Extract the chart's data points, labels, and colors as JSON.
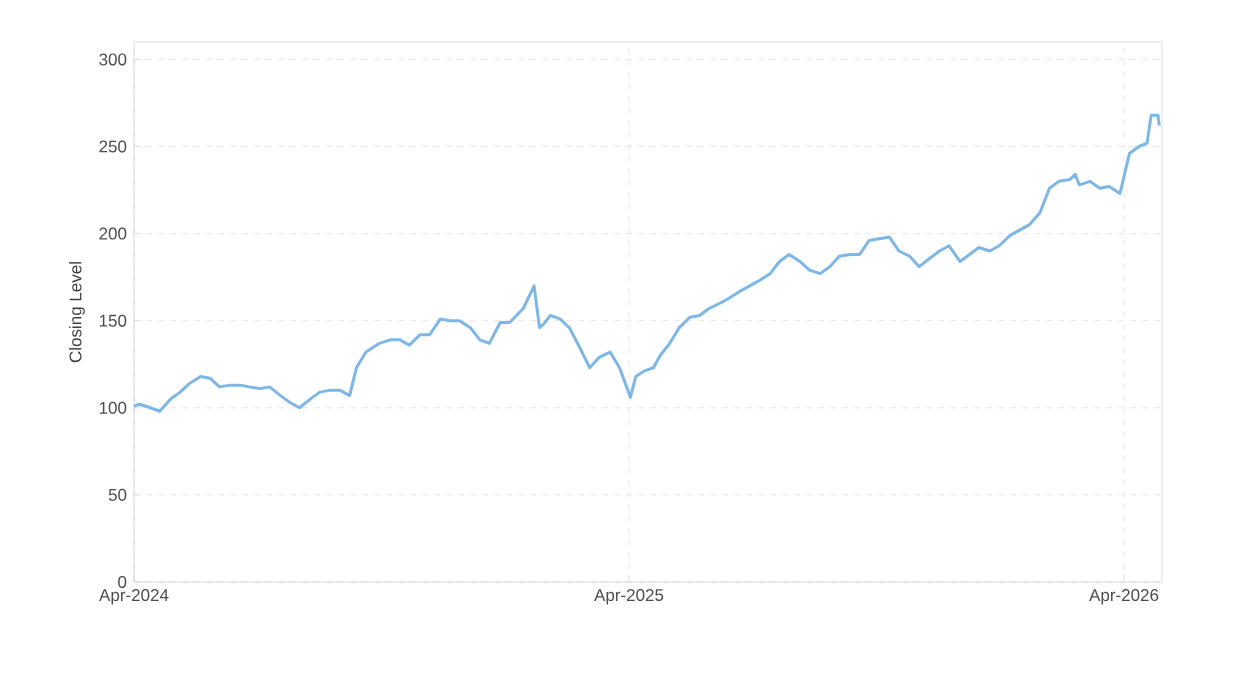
{
  "chart_data": {
    "type": "line",
    "ylabel": "Closing Level",
    "color": "#7eb6e6",
    "xlim": [
      "2024-04-01",
      "2026-04-29"
    ],
    "ylim": [
      0,
      310
    ],
    "xticks": [
      {
        "value": "2024-04-01",
        "label": "Apr-2024"
      },
      {
        "value": "2025-04-01",
        "label": "Apr-2025"
      },
      {
        "value": "2026-04-01",
        "label": "Apr-2026"
      }
    ],
    "yticks": [
      0,
      50,
      100,
      150,
      200,
      250,
      300
    ],
    "grid": true,
    "x": [
      "2024-04-01",
      "2024-04-05",
      "2024-04-13",
      "2024-04-20",
      "2024-04-28",
      "2024-05-05",
      "2024-05-12",
      "2024-05-20",
      "2024-05-27",
      "2024-06-03",
      "2024-06-11",
      "2024-06-18",
      "2024-06-25",
      "2024-07-03",
      "2024-07-10",
      "2024-07-18",
      "2024-07-25",
      "2024-08-01",
      "2024-08-09",
      "2024-08-16",
      "2024-08-23",
      "2024-08-31",
      "2024-09-07",
      "2024-09-12",
      "2024-09-19",
      "2024-09-29",
      "2024-10-07",
      "2024-10-14",
      "2024-10-21",
      "2024-10-29",
      "2024-11-05",
      "2024-11-13",
      "2024-11-20",
      "2024-11-27",
      "2024-12-05",
      "2024-12-12",
      "2024-12-19",
      "2024-12-27",
      "2025-01-03",
      "2025-01-13",
      "2025-01-21",
      "2025-01-25",
      "2025-01-28",
      "2025-02-02",
      "2025-02-09",
      "2025-02-16",
      "2025-02-24",
      "2025-03-03",
      "2025-03-10",
      "2025-03-18",
      "2025-03-25",
      "2025-04-02",
      "2025-04-06",
      "2025-04-12",
      "2025-04-19",
      "2025-04-24",
      "2025-05-01",
      "2025-05-08",
      "2025-05-16",
      "2025-05-23",
      "2025-05-30",
      "2025-06-07",
      "2025-06-14",
      "2025-06-22",
      "2025-06-29",
      "2025-07-06",
      "2025-07-14",
      "2025-07-21",
      "2025-07-28",
      "2025-08-05",
      "2025-08-12",
      "2025-08-20",
      "2025-08-27",
      "2025-09-03",
      "2025-09-11",
      "2025-09-18",
      "2025-09-25",
      "2025-10-10",
      "2025-10-17",
      "2025-10-25",
      "2025-11-01",
      "2025-11-09",
      "2025-11-16",
      "2025-11-23",
      "2025-12-01",
      "2025-12-08",
      "2025-12-15",
      "2025-12-23",
      "2025-12-30",
      "2026-01-07",
      "2026-01-14",
      "2026-01-21",
      "2026-01-29",
      "2026-02-05",
      "2026-02-12",
      "2026-02-20",
      "2026-02-24",
      "2026-02-27",
      "2026-03-07",
      "2026-03-14",
      "2026-03-21",
      "2026-03-29",
      "2026-04-05",
      "2026-04-12",
      "2026-04-18",
      "2026-04-21",
      "2026-04-26",
      "2026-04-27"
    ],
    "values": [
      101,
      102,
      100,
      98,
      105,
      109,
      114,
      118,
      117,
      112,
      113,
      113,
      112,
      111,
      112,
      107,
      103,
      100,
      105,
      109,
      110,
      110,
      107,
      123,
      132,
      137,
      139,
      139,
      136,
      142,
      142,
      151,
      150,
      150,
      146,
      139,
      137,
      149,
      149,
      157,
      170,
      146,
      148,
      153,
      151,
      146,
      134,
      123,
      129,
      132,
      123,
      106,
      118,
      121,
      123,
      130,
      137,
      146,
      152,
      153,
      157,
      160,
      163,
      167,
      170,
      173,
      177,
      184,
      188,
      184,
      179,
      177,
      181,
      187,
      188,
      188,
      196,
      198,
      190,
      187,
      181,
      186,
      190,
      193,
      184,
      188,
      192,
      190,
      193,
      199,
      202,
      205,
      212,
      226,
      230,
      231,
      234,
      228,
      230,
      226,
      227,
      223,
      246,
      250,
      252,
      268,
      268,
      262
    ]
  }
}
